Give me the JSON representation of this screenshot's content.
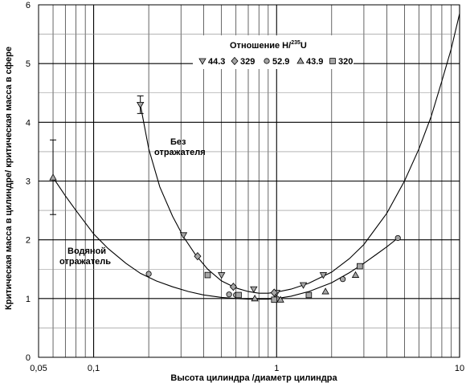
{
  "chart_data": {
    "type": "scatter",
    "xscale": "log",
    "xlim": [
      0.05,
      10
    ],
    "ylim": [
      0,
      6
    ],
    "grid": true,
    "xlabel": "Высота цилиндра /диаметр цилиндра",
    "ylabel": "Критическая масса в цилиндре/ критическая масса в сфере",
    "x_ticks": [
      {
        "value": 0.05,
        "label": "0,05"
      },
      {
        "value": 0.1,
        "label": "0,1"
      },
      {
        "value": 1,
        "label": "1"
      },
      {
        "value": 10,
        "label": "10"
      }
    ],
    "y_ticks": [
      {
        "value": 0,
        "label": "0"
      },
      {
        "value": 1,
        "label": "1"
      },
      {
        "value": 2,
        "label": "2"
      },
      {
        "value": 3,
        "label": "3"
      },
      {
        "value": 4,
        "label": "4"
      },
      {
        "value": 5,
        "label": "5"
      },
      {
        "value": 6,
        "label": "6"
      }
    ],
    "legend": {
      "title_main": "Отношение H/",
      "title_sup": "235",
      "title_end": "U",
      "placement": "top-center",
      "entries": [
        {
          "label": "44.3",
          "marker": "triangle-down"
        },
        {
          "label": "329",
          "marker": "diamond"
        },
        {
          "label": "52.9",
          "marker": "circle"
        },
        {
          "label": "43.9",
          "marker": "triangle-up"
        },
        {
          "label": "320",
          "marker": "square"
        }
      ]
    },
    "annotations": [
      {
        "id": "bare",
        "lines": [
          "Без",
          "отражателя"
        ]
      },
      {
        "id": "water",
        "lines": [
          "Водяной",
          "отражатель"
        ]
      }
    ],
    "series": [
      {
        "name": "44.3",
        "marker": "triangle-down",
        "x": [
          0.18,
          0.31,
          0.5,
          0.75,
          1.0,
          1.4,
          1.8
        ],
        "y": [
          4.3,
          2.08,
          1.4,
          1.16,
          1.1,
          1.23,
          1.4
        ]
      },
      {
        "name": "329",
        "marker": "diamond",
        "x": [
          0.37,
          0.58,
          0.97
        ],
        "y": [
          1.72,
          1.2,
          1.1
        ]
      },
      {
        "name": "52.9",
        "marker": "circle",
        "x": [
          0.2,
          0.55,
          0.6,
          1.0,
          2.3,
          4.6
        ],
        "y": [
          1.42,
          1.07,
          1.06,
          1.0,
          1.33,
          2.03
        ]
      },
      {
        "name": "43.9",
        "marker": "triangle-up",
        "x": [
          0.06,
          0.76,
          1.05,
          1.85,
          2.7
        ],
        "y": [
          3.06,
          1.0,
          0.98,
          1.12,
          1.4
        ]
      },
      {
        "name": "320",
        "marker": "square",
        "x": [
          0.42,
          0.62,
          0.97,
          1.5,
          2.85
        ],
        "y": [
          1.4,
          1.06,
          0.98,
          1.06,
          1.55
        ]
      }
    ],
    "error_bars": [
      {
        "x": 0.06,
        "low": 2.43,
        "high": 3.7
      },
      {
        "x": 0.18,
        "low": 4.15,
        "high": 4.45
      }
    ],
    "curves": [
      {
        "name": "bare",
        "x": [
          0.18,
          0.2,
          0.23,
          0.27,
          0.31,
          0.36,
          0.42,
          0.5,
          0.6,
          0.7,
          0.8,
          0.9,
          1.0,
          1.2,
          1.5,
          2.0,
          2.5,
          3.0,
          4.0,
          5.0,
          6.0,
          7.0,
          8.0,
          9.0,
          10.0
        ],
        "y": [
          4.3,
          3.55,
          2.9,
          2.4,
          2.05,
          1.75,
          1.5,
          1.3,
          1.18,
          1.12,
          1.09,
          1.09,
          1.11,
          1.16,
          1.26,
          1.45,
          1.68,
          1.92,
          2.45,
          3.0,
          3.55,
          4.1,
          4.7,
          5.25,
          5.85
        ]
      },
      {
        "name": "water",
        "x": [
          0.06,
          0.07,
          0.08,
          0.1,
          0.12,
          0.15,
          0.18,
          0.22,
          0.27,
          0.33,
          0.4,
          0.5,
          0.6,
          0.7,
          0.8,
          0.9,
          1.0,
          1.2,
          1.5,
          2.0,
          2.5,
          3.0,
          3.5,
          4.0,
          4.6
        ],
        "y": [
          3.06,
          2.75,
          2.5,
          2.1,
          1.85,
          1.6,
          1.43,
          1.3,
          1.2,
          1.12,
          1.06,
          1.02,
          1.0,
          0.99,
          0.99,
          0.99,
          1.0,
          1.04,
          1.12,
          1.27,
          1.44,
          1.6,
          1.75,
          1.88,
          2.03
        ]
      }
    ]
  }
}
